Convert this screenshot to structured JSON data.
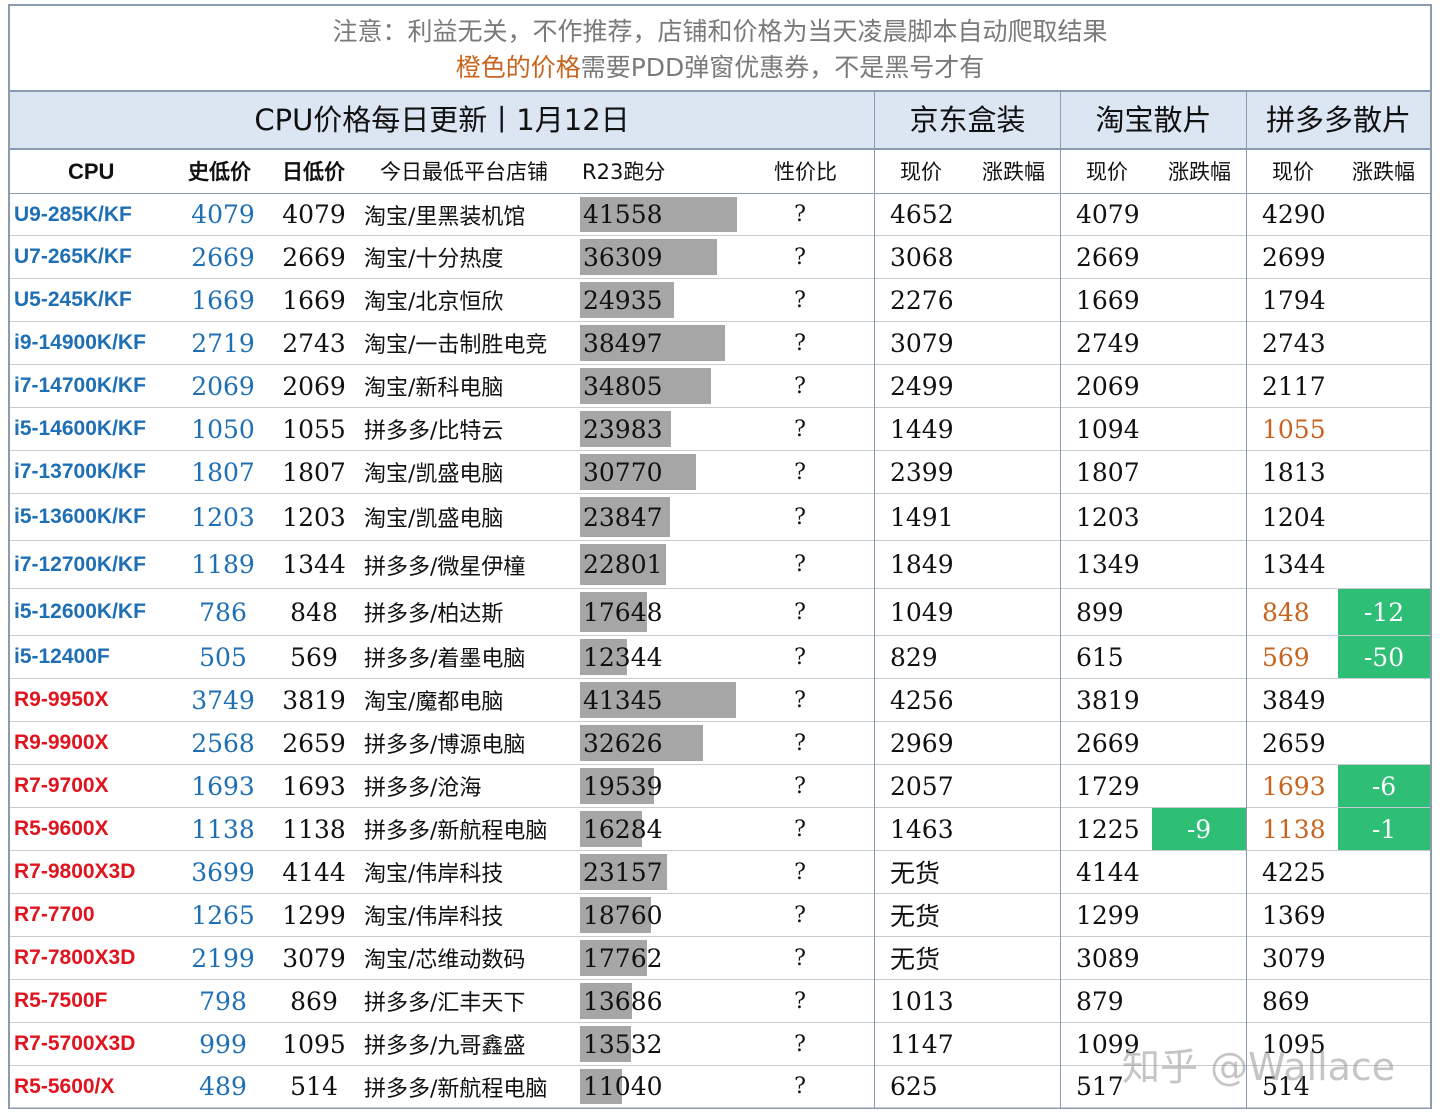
{
  "notice": {
    "line1": "注意：利益无关，不作推荐，店铺和价格为当天凌晨脚本自动爬取结果",
    "line2_orange": "橙色的价格",
    "line2_rest": "需要PDD弹窗优惠券，不是黑号才有"
  },
  "header": {
    "title": "CPU价格每日更新丨1月12日",
    "jd": "京东盒装",
    "taobao": "淘宝散片",
    "pdd": "拼多多散片"
  },
  "columns": {
    "cpu": "CPU",
    "hist_low": "史低价",
    "day_low": "日低价",
    "shop": "今日最低平台店铺",
    "r23": "R23跑分",
    "vfm": "性价比",
    "jd_price": "现价",
    "jd_change": "涨跌幅",
    "tb_price": "现价",
    "tb_change": "涨跌幅",
    "pdd_price": "现价",
    "pdd_change": "涨跌幅"
  },
  "r23_max": 41558,
  "colors": {
    "intel": "#1f6fb5",
    "amd": "#e0141e",
    "coupon_orange": "#c8641e",
    "drop_green": "#2ebe76",
    "bar_gray": "#a6a6a6"
  },
  "rows": [
    {
      "name": "U9-285K/KF",
      "brand": "intel",
      "hist": "4079",
      "day": "4079",
      "shop": "淘宝/里黑装机馆",
      "r23": 41558,
      "vfm": "?",
      "jd": "4652",
      "jd_ch": "",
      "tb": "4079",
      "tb_ch": "",
      "pdd": "4290",
      "pdd_orange": false,
      "pdd_ch": ""
    },
    {
      "name": "U7-265K/KF",
      "brand": "intel",
      "hist": "2669",
      "day": "2669",
      "shop": "淘宝/十分热度",
      "r23": 36309,
      "vfm": "?",
      "jd": "3068",
      "jd_ch": "",
      "tb": "2669",
      "tb_ch": "",
      "pdd": "2699",
      "pdd_orange": false,
      "pdd_ch": ""
    },
    {
      "name": "U5-245K/KF",
      "brand": "intel",
      "hist": "1669",
      "day": "1669",
      "shop": "淘宝/北京恒欣",
      "r23": 24935,
      "vfm": "?",
      "jd": "2276",
      "jd_ch": "",
      "tb": "1669",
      "tb_ch": "",
      "pdd": "1794",
      "pdd_orange": false,
      "pdd_ch": ""
    },
    {
      "name": "i9-14900K/KF",
      "brand": "intel",
      "hist": "2719",
      "day": "2743",
      "shop": "淘宝/一击制胜电竞",
      "r23": 38497,
      "vfm": "?",
      "jd": "3079",
      "jd_ch": "",
      "tb": "2749",
      "tb_ch": "",
      "pdd": "2743",
      "pdd_orange": false,
      "pdd_ch": ""
    },
    {
      "name": "i7-14700K/KF",
      "brand": "intel",
      "hist": "2069",
      "day": "2069",
      "shop": "淘宝/新科电脑",
      "r23": 34805,
      "vfm": "?",
      "jd": "2499",
      "jd_ch": "",
      "tb": "2069",
      "tb_ch": "",
      "pdd": "2117",
      "pdd_orange": false,
      "pdd_ch": ""
    },
    {
      "name": "i5-14600K/KF",
      "brand": "intel",
      "hist": "1050",
      "day": "1055",
      "shop": "拼多多/比特云",
      "r23": 23983,
      "vfm": "?",
      "jd": "1449",
      "jd_ch": "",
      "tb": "1094",
      "tb_ch": "",
      "pdd": "1055",
      "pdd_orange": true,
      "pdd_ch": ""
    },
    {
      "name": "i7-13700K/KF",
      "brand": "intel",
      "hist": "1807",
      "day": "1807",
      "shop": "淘宝/凯盛电脑",
      "r23": 30770,
      "vfm": "?",
      "jd": "2399",
      "jd_ch": "",
      "tb": "1807",
      "tb_ch": "",
      "pdd": "1813",
      "pdd_orange": false,
      "pdd_ch": ""
    },
    {
      "name": "i5-13600K/KF",
      "brand": "intel",
      "hist": "1203",
      "day": "1203",
      "shop": "淘宝/凯盛电脑",
      "r23": 23847,
      "vfm": "?",
      "jd": "1491",
      "jd_ch": "",
      "tb": "1203",
      "tb_ch": "",
      "pdd": "1204",
      "pdd_orange": false,
      "pdd_ch": ""
    },
    {
      "name": "i7-12700K/KF",
      "brand": "intel",
      "hist": "1189",
      "day": "1344",
      "shop": "拼多多/微星伊橦",
      "r23": 22801,
      "vfm": "?",
      "jd": "1849",
      "jd_ch": "",
      "tb": "1349",
      "tb_ch": "",
      "pdd": "1344",
      "pdd_orange": false,
      "pdd_ch": ""
    },
    {
      "name": "i5-12600K/KF",
      "brand": "intel",
      "hist": "786",
      "day": "848",
      "shop": "拼多多/柏达斯",
      "r23": 17648,
      "vfm": "?",
      "jd": "1049",
      "jd_ch": "",
      "tb": "899",
      "tb_ch": "",
      "pdd": "848",
      "pdd_orange": true,
      "pdd_ch": "-12"
    },
    {
      "name": "i5-12400F",
      "brand": "intel",
      "hist": "505",
      "day": "569",
      "shop": "拼多多/着墨电脑",
      "r23": 12344,
      "vfm": "?",
      "jd": "829",
      "jd_ch": "",
      "tb": "615",
      "tb_ch": "",
      "pdd": "569",
      "pdd_orange": true,
      "pdd_ch": "-50"
    },
    {
      "name": "R9-9950X",
      "brand": "amd",
      "hist": "3749",
      "day": "3819",
      "shop": "淘宝/魔都电脑",
      "r23": 41345,
      "vfm": "?",
      "jd": "4256",
      "jd_ch": "",
      "tb": "3819",
      "tb_ch": "",
      "pdd": "3849",
      "pdd_orange": false,
      "pdd_ch": ""
    },
    {
      "name": "R9-9900X",
      "brand": "amd",
      "hist": "2568",
      "day": "2659",
      "shop": "拼多多/博源电脑",
      "r23": 32626,
      "vfm": "?",
      "jd": "2969",
      "jd_ch": "",
      "tb": "2669",
      "tb_ch": "",
      "pdd": "2659",
      "pdd_orange": false,
      "pdd_ch": ""
    },
    {
      "name": "R7-9700X",
      "brand": "amd",
      "hist": "1693",
      "day": "1693",
      "shop": "拼多多/沧海",
      "r23": 19539,
      "vfm": "?",
      "jd": "2057",
      "jd_ch": "",
      "tb": "1729",
      "tb_ch": "",
      "pdd": "1693",
      "pdd_orange": true,
      "pdd_ch": "-6"
    },
    {
      "name": "R5-9600X",
      "brand": "amd",
      "hist": "1138",
      "day": "1138",
      "shop": "拼多多/新航程电脑",
      "r23": 16284,
      "vfm": "?",
      "jd": "1463",
      "jd_ch": "",
      "tb": "1225",
      "tb_ch": "-9",
      "pdd": "1138",
      "pdd_orange": true,
      "pdd_ch": "-1"
    },
    {
      "name": "R7-9800X3D",
      "brand": "amd",
      "hist": "3699",
      "day": "4144",
      "shop": "淘宝/伟岸科技",
      "r23": 23157,
      "vfm": "?",
      "jd": "无货",
      "jd_ch": "",
      "tb": "4144",
      "tb_ch": "",
      "pdd": "4225",
      "pdd_orange": false,
      "pdd_ch": ""
    },
    {
      "name": "R7-7700",
      "brand": "amd",
      "hist": "1265",
      "day": "1299",
      "shop": "淘宝/伟岸科技",
      "r23": 18760,
      "vfm": "?",
      "jd": "无货",
      "jd_ch": "",
      "tb": "1299",
      "tb_ch": "",
      "pdd": "1369",
      "pdd_orange": false,
      "pdd_ch": ""
    },
    {
      "name": "R7-7800X3D",
      "brand": "amd",
      "hist": "2199",
      "day": "3079",
      "shop": "淘宝/芯维动数码",
      "r23": 17762,
      "vfm": "?",
      "jd": "无货",
      "jd_ch": "",
      "tb": "3089",
      "tb_ch": "",
      "pdd": "3079",
      "pdd_orange": false,
      "pdd_ch": ""
    },
    {
      "name": "R5-7500F",
      "brand": "amd",
      "hist": "798",
      "day": "869",
      "shop": "拼多多/汇丰天下",
      "r23": 13686,
      "vfm": "?",
      "jd": "1013",
      "jd_ch": "",
      "tb": "879",
      "tb_ch": "",
      "pdd": "869",
      "pdd_orange": false,
      "pdd_ch": ""
    },
    {
      "name": "R7-5700X3D",
      "brand": "amd",
      "hist": "999",
      "day": "1095",
      "shop": "拼多多/九哥鑫盛",
      "r23": 13532,
      "vfm": "?",
      "jd": "1147",
      "jd_ch": "",
      "tb": "1099",
      "tb_ch": "",
      "pdd": "1095",
      "pdd_orange": false,
      "pdd_ch": ""
    },
    {
      "name": "R5-5600/X",
      "brand": "amd",
      "hist": "489",
      "day": "514",
      "shop": "拼多多/新航程电脑",
      "r23": 11040,
      "vfm": "?",
      "jd": "625",
      "jd_ch": "",
      "tb": "517",
      "tb_ch": "",
      "pdd": "514",
      "pdd_orange": false,
      "pdd_ch": ""
    }
  ],
  "watermark": "知乎 @Wallace"
}
